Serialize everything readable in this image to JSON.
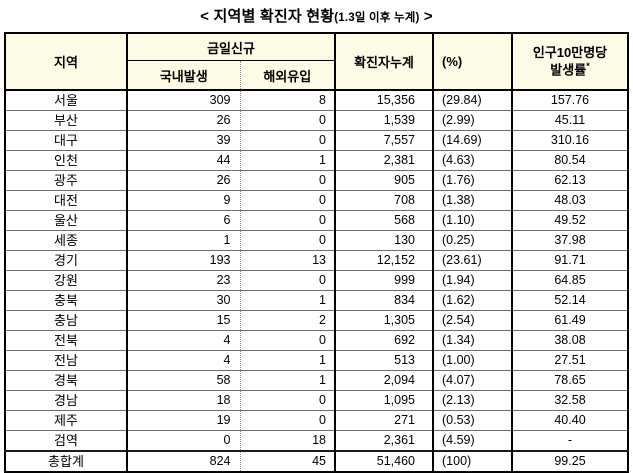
{
  "title": {
    "open_bracket": "<",
    "main": "지역별 확진자 현황",
    "sub": "(1.3일 이후 누계)",
    "close_bracket": ">"
  },
  "colors": {
    "header_bg": "#FCFBE6",
    "border": "#000000",
    "row_line": "#6E6E6E"
  },
  "table": {
    "headers": {
      "region": "지역",
      "today_new": "금일신규",
      "domestic": "국내발생",
      "imported": "해외유입",
      "cumulative": "확진자누계",
      "percent": "(%)",
      "incidence_line1": "인구10만명당",
      "incidence_line2": "발생률",
      "incidence_mark": "*"
    },
    "rows": [
      {
        "region": "서울",
        "domestic": "309",
        "imported": "8",
        "cumulative": "15,356",
        "percent": "(29.84)",
        "incidence": "157.76"
      },
      {
        "region": "부산",
        "domestic": "26",
        "imported": "0",
        "cumulative": "1,539",
        "percent": "(2.99)",
        "incidence": "45.11"
      },
      {
        "region": "대구",
        "domestic": "39",
        "imported": "0",
        "cumulative": "7,557",
        "percent": "(14.69)",
        "incidence": "310.16"
      },
      {
        "region": "인천",
        "domestic": "44",
        "imported": "1",
        "cumulative": "2,381",
        "percent": "(4.63)",
        "incidence": "80.54"
      },
      {
        "region": "광주",
        "domestic": "26",
        "imported": "0",
        "cumulative": "905",
        "percent": "(1.76)",
        "incidence": "62.13"
      },
      {
        "region": "대전",
        "domestic": "9",
        "imported": "0",
        "cumulative": "708",
        "percent": "(1.38)",
        "incidence": "48.03"
      },
      {
        "region": "울산",
        "domestic": "6",
        "imported": "0",
        "cumulative": "568",
        "percent": "(1.10)",
        "incidence": "49.52"
      },
      {
        "region": "세종",
        "domestic": "1",
        "imported": "0",
        "cumulative": "130",
        "percent": "(0.25)",
        "incidence": "37.98"
      },
      {
        "region": "경기",
        "domestic": "193",
        "imported": "13",
        "cumulative": "12,152",
        "percent": "(23.61)",
        "incidence": "91.71"
      },
      {
        "region": "강원",
        "domestic": "23",
        "imported": "0",
        "cumulative": "999",
        "percent": "(1.94)",
        "incidence": "64.85"
      },
      {
        "region": "충북",
        "domestic": "30",
        "imported": "1",
        "cumulative": "834",
        "percent": "(1.62)",
        "incidence": "52.14"
      },
      {
        "region": "충남",
        "domestic": "15",
        "imported": "2",
        "cumulative": "1,305",
        "percent": "(2.54)",
        "incidence": "61.49"
      },
      {
        "region": "전북",
        "domestic": "4",
        "imported": "0",
        "cumulative": "692",
        "percent": "(1.34)",
        "incidence": "38.08"
      },
      {
        "region": "전남",
        "domestic": "4",
        "imported": "1",
        "cumulative": "513",
        "percent": "(1.00)",
        "incidence": "27.51"
      },
      {
        "region": "경북",
        "domestic": "58",
        "imported": "1",
        "cumulative": "2,094",
        "percent": "(4.07)",
        "incidence": "78.65"
      },
      {
        "region": "경남",
        "domestic": "18",
        "imported": "0",
        "cumulative": "1,095",
        "percent": "(2.13)",
        "incidence": "32.58"
      },
      {
        "region": "제주",
        "domestic": "19",
        "imported": "0",
        "cumulative": "271",
        "percent": "(0.53)",
        "incidence": "40.40"
      },
      {
        "region": "검역",
        "domestic": "0",
        "imported": "18",
        "cumulative": "2,361",
        "percent": "(4.59)",
        "incidence": "-"
      }
    ],
    "total": {
      "region": "총합계",
      "domestic": "824",
      "imported": "45",
      "cumulative": "51,460",
      "percent": "(100)",
      "incidence": "99.25"
    }
  }
}
